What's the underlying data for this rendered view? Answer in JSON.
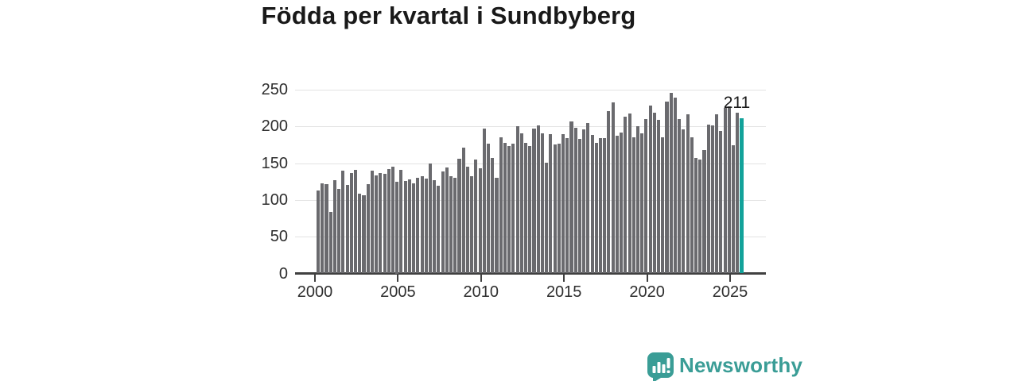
{
  "title": "Födda per kvartal i Sundbyberg",
  "colors": {
    "bar": "#6a6a6e",
    "highlight": "#12a29a",
    "grid": "#e3e3e3",
    "axis": "#404040",
    "label_text": "#2e2e2e",
    "title_text": "#191919",
    "logo": "#3a9d96"
  },
  "annotation": {
    "label": "211"
  },
  "logo": {
    "text": "Newsworthy",
    "icon": "newsworthy-speech-bubble-chart-icon"
  },
  "chart_data": {
    "type": "bar",
    "title": "Födda per kvartal i Sundbyberg",
    "xlabel": "",
    "ylabel": "",
    "frequency": "quarterly",
    "x_start": "2000-Q1",
    "x_end": "2025-Q3",
    "ylim": [
      0,
      250
    ],
    "y_ticks": [
      0,
      50,
      100,
      150,
      200,
      250
    ],
    "x_ticks": [
      "2000",
      "2005",
      "2010",
      "2015",
      "2020",
      "2025"
    ],
    "grid": true,
    "legend_position": "none",
    "highlight": {
      "index": 102,
      "category": "2025-Q3",
      "value": 211,
      "label": "211"
    },
    "categories": [
      "2000-Q1",
      "2000-Q2",
      "2000-Q3",
      "2000-Q4",
      "2001-Q1",
      "2001-Q2",
      "2001-Q3",
      "2001-Q4",
      "2002-Q1",
      "2002-Q2",
      "2002-Q3",
      "2002-Q4",
      "2003-Q1",
      "2003-Q2",
      "2003-Q3",
      "2003-Q4",
      "2004-Q1",
      "2004-Q2",
      "2004-Q3",
      "2004-Q4",
      "2005-Q1",
      "2005-Q2",
      "2005-Q3",
      "2005-Q4",
      "2006-Q1",
      "2006-Q2",
      "2006-Q3",
      "2006-Q4",
      "2007-Q1",
      "2007-Q2",
      "2007-Q3",
      "2007-Q4",
      "2008-Q1",
      "2008-Q2",
      "2008-Q3",
      "2008-Q4",
      "2009-Q1",
      "2009-Q2",
      "2009-Q3",
      "2009-Q4",
      "2010-Q1",
      "2010-Q2",
      "2010-Q3",
      "2010-Q4",
      "2011-Q1",
      "2011-Q2",
      "2011-Q3",
      "2011-Q4",
      "2012-Q1",
      "2012-Q2",
      "2012-Q3",
      "2012-Q4",
      "2013-Q1",
      "2013-Q2",
      "2013-Q3",
      "2013-Q4",
      "2014-Q1",
      "2014-Q2",
      "2014-Q3",
      "2014-Q4",
      "2015-Q1",
      "2015-Q2",
      "2015-Q3",
      "2015-Q4",
      "2016-Q1",
      "2016-Q2",
      "2016-Q3",
      "2016-Q4",
      "2017-Q1",
      "2017-Q2",
      "2017-Q3",
      "2017-Q4",
      "2018-Q1",
      "2018-Q2",
      "2018-Q3",
      "2018-Q4",
      "2019-Q1",
      "2019-Q2",
      "2019-Q3",
      "2019-Q4",
      "2020-Q1",
      "2020-Q2",
      "2020-Q3",
      "2020-Q4",
      "2021-Q1",
      "2021-Q2",
      "2021-Q3",
      "2021-Q4",
      "2022-Q1",
      "2022-Q2",
      "2022-Q3",
      "2022-Q4",
      "2023-Q1",
      "2023-Q2",
      "2023-Q3",
      "2023-Q4",
      "2024-Q1",
      "2024-Q2",
      "2024-Q3",
      "2024-Q4",
      "2025-Q1",
      "2025-Q2",
      "2025-Q3"
    ],
    "values": [
      113,
      123,
      122,
      84,
      127,
      115,
      140,
      120,
      137,
      141,
      108,
      106,
      122,
      140,
      133,
      137,
      136,
      142,
      145,
      125,
      141,
      126,
      128,
      123,
      130,
      132,
      129,
      150,
      127,
      119,
      139,
      144,
      132,
      130,
      156,
      171,
      145,
      132,
      155,
      143,
      197,
      177,
      157,
      130,
      185,
      178,
      173,
      177,
      200,
      191,
      178,
      173,
      197,
      201,
      191,
      151,
      190,
      175,
      177,
      190,
      184,
      207,
      198,
      183,
      196,
      205,
      188,
      178,
      184,
      184,
      221,
      233,
      187,
      192,
      213,
      218,
      185,
      200,
      191,
      210,
      228,
      219,
      209,
      185,
      234,
      246,
      239,
      210,
      196,
      216,
      185,
      157,
      155,
      168,
      203,
      201,
      216,
      194,
      225,
      227,
      174,
      219,
      211
    ]
  }
}
